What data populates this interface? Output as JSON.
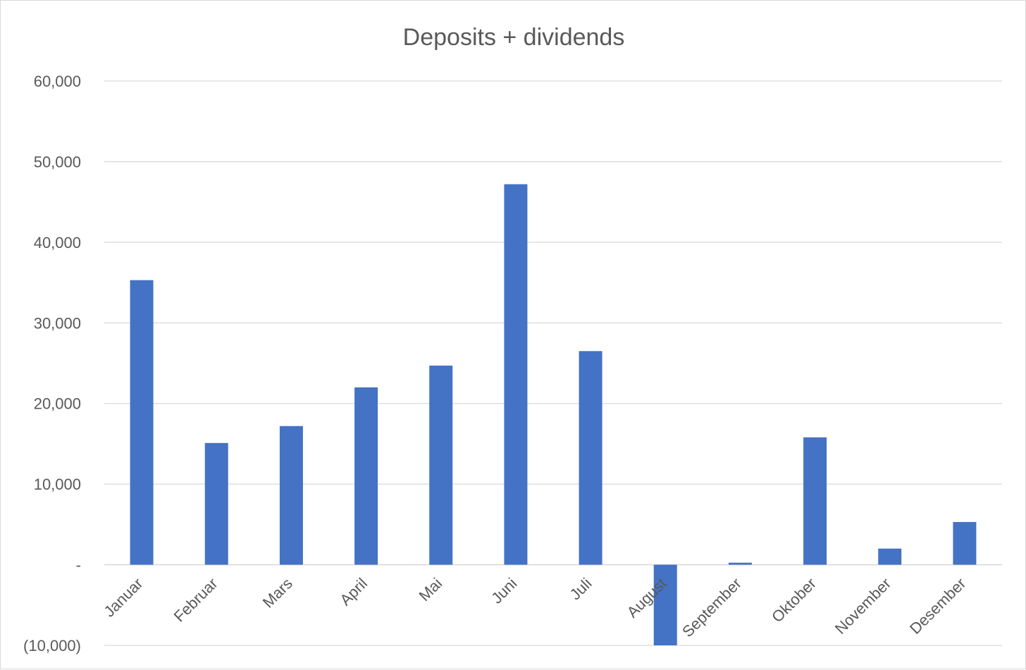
{
  "chart_data": {
    "type": "bar",
    "title": "Deposits + dividends",
    "xlabel": "",
    "ylabel": "",
    "categories": [
      "Januar",
      "Februar",
      "Mars",
      "April",
      "Mai",
      "Juni",
      "Juli",
      "August",
      "September",
      "Oktober",
      "November",
      "Desember"
    ],
    "values": [
      35300,
      15100,
      17200,
      22000,
      24700,
      47200,
      26500,
      -10000,
      250,
      15800,
      2000,
      5300
    ],
    "ylim": [
      -10000,
      60000
    ],
    "yticks": [
      60000,
      50000,
      40000,
      30000,
      20000,
      10000,
      0,
      -10000
    ],
    "ytick_labels": [
      "60,000",
      "50,000",
      "40,000",
      "30,000",
      "20,000",
      "10,000",
      "-",
      "(10,000)"
    ],
    "bar_color": "#4472c4",
    "grid": true,
    "legend": "none"
  }
}
